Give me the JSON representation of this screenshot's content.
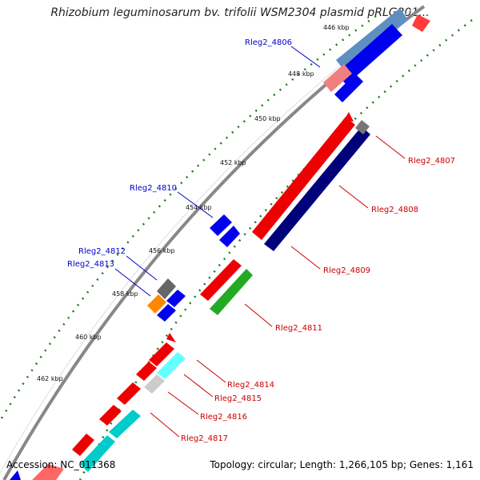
{
  "title": "Rhizobium leguminosarum bv. trifolii WSM2304 plasmid pRLG201...",
  "accession": "Accession: NC_011368",
  "summary": "Topology: circular; Length: 1,266,105 bp; Genes: 1,161",
  "ticks": [
    "446 kbp",
    "448 kbp",
    "450 kbp",
    "452 kbp",
    "454 kbp",
    "456 kbp",
    "458 kbp",
    "460 kbp",
    "462 kbp"
  ],
  "labels": {
    "l4806": "Rleg2_4806",
    "l4807": "Rleg2_4807",
    "l4808": "Rleg2_4808",
    "l4809": "Rleg2_4809",
    "l4810": "Rleg2_4810",
    "l4811": "Rleg2_4811",
    "l4812": "Rleg2_4812",
    "l4813": "Rleg2_4813",
    "l4814": "Rleg2_4814",
    "l4815": "Rleg2_4815",
    "l4816": "Rleg2_4816",
    "l4817": "Rleg2_4817"
  },
  "colors": {
    "forward_label": "#0000cc",
    "reverse_label": "#cc0000",
    "backbone": "#888888",
    "gc_dots": "#1a7a1a"
  }
}
